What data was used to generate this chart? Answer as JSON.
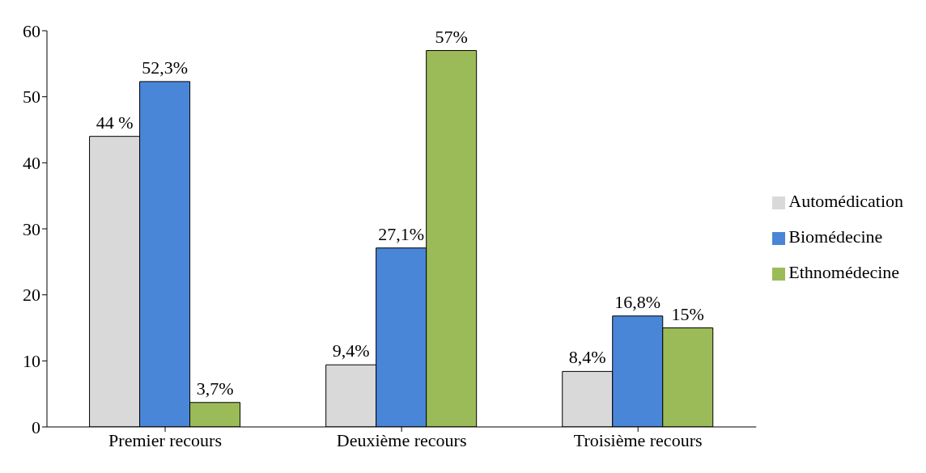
{
  "chart_data": {
    "type": "bar",
    "categories": [
      "Premier recours",
      "Deuxième recours",
      "Troisième recours"
    ],
    "series": [
      {
        "name": "Automédication",
        "color": "#d9d9d9",
        "values": [
          44,
          9.4,
          8.4
        ],
        "value_labels": [
          "44 %",
          "9,4%",
          "8,4%"
        ]
      },
      {
        "name": "Biomédecine",
        "color": "#4a86d8",
        "values": [
          52.3,
          27.1,
          16.8
        ],
        "value_labels": [
          "52,3%",
          "27,1%",
          "16,8%"
        ]
      },
      {
        "name": "Ethnomédecine",
        "color": "#9bbb59",
        "values": [
          3.7,
          57,
          15
        ],
        "value_labels": [
          "3,7%",
          "57%",
          "15%"
        ]
      }
    ],
    "ylim": [
      0,
      60
    ],
    "yticks": [
      0,
      10,
      20,
      30,
      40,
      50,
      60
    ],
    "grid": false,
    "legend": "right"
  }
}
